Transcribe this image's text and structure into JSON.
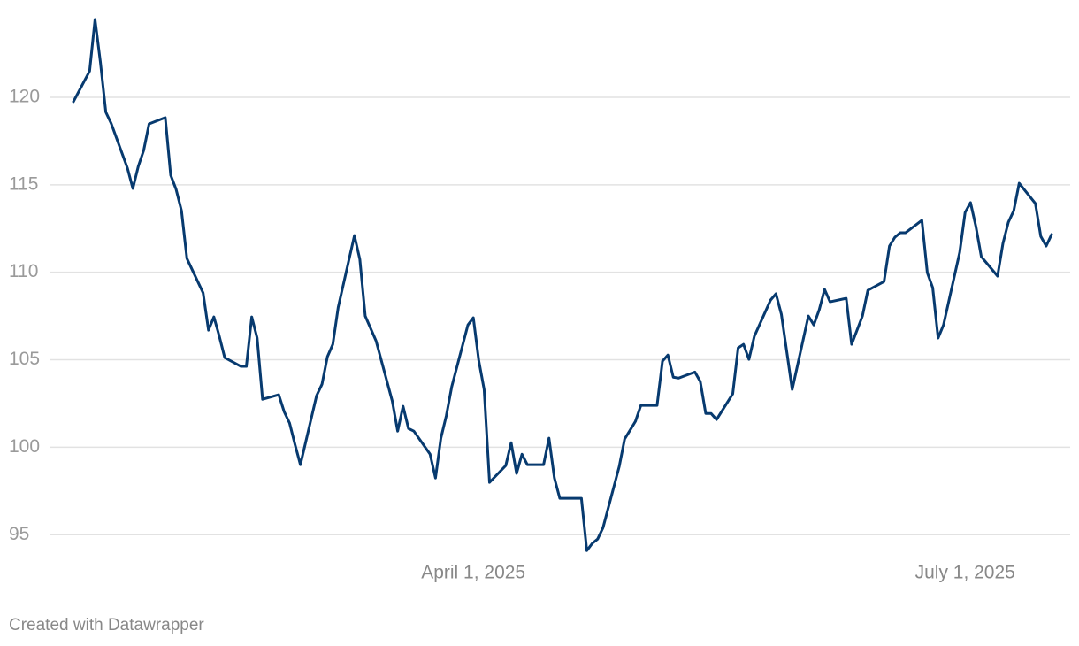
{
  "chart_data": {
    "type": "line",
    "credit": "Created with Datawrapper",
    "x": [
      "2025-01-17",
      "2025-01-20",
      "2025-01-21",
      "2025-01-22",
      "2025-01-23",
      "2025-01-24",
      "2025-01-27",
      "2025-01-28",
      "2025-01-29",
      "2025-01-30",
      "2025-01-31",
      "2025-02-03",
      "2025-02-04",
      "2025-02-05",
      "2025-02-06",
      "2025-02-07",
      "2025-02-10",
      "2025-02-11",
      "2025-02-12",
      "2025-02-13",
      "2025-02-14",
      "2025-02-17",
      "2025-02-18",
      "2025-02-19",
      "2025-02-20",
      "2025-02-21",
      "2025-02-24",
      "2025-02-25",
      "2025-02-26",
      "2025-02-27",
      "2025-02-28",
      "2025-03-03",
      "2025-03-04",
      "2025-03-05",
      "2025-03-06",
      "2025-03-07",
      "2025-03-10",
      "2025-03-11",
      "2025-03-12",
      "2025-03-14",
      "2025-03-17",
      "2025-03-18",
      "2025-03-19",
      "2025-03-20",
      "2025-03-21",
      "2025-03-24",
      "2025-03-25",
      "2025-03-26",
      "2025-03-27",
      "2025-03-28",
      "2025-03-31",
      "2025-04-01",
      "2025-04-02",
      "2025-04-03",
      "2025-04-04",
      "2025-04-07",
      "2025-04-08",
      "2025-04-09",
      "2025-04-10",
      "2025-04-11",
      "2025-04-14",
      "2025-04-15",
      "2025-04-16",
      "2025-04-17",
      "2025-04-21",
      "2025-04-22",
      "2025-04-23",
      "2025-04-24",
      "2025-04-25",
      "2025-04-28",
      "2025-04-29",
      "2025-04-30",
      "2025-05-01",
      "2025-05-02",
      "2025-05-05",
      "2025-05-06",
      "2025-05-07",
      "2025-05-08",
      "2025-05-09",
      "2025-05-12",
      "2025-05-13",
      "2025-05-14",
      "2025-05-15",
      "2025-05-16",
      "2025-05-19",
      "2025-05-20",
      "2025-05-21",
      "2025-05-22",
      "2025-05-23",
      "2025-05-26",
      "2025-05-27",
      "2025-05-28",
      "2025-05-30",
      "2025-06-02",
      "2025-06-03",
      "2025-06-04",
      "2025-06-05",
      "2025-06-06",
      "2025-06-09",
      "2025-06-10",
      "2025-06-12",
      "2025-06-13",
      "2025-06-16",
      "2025-06-17",
      "2025-06-18",
      "2025-06-19",
      "2025-06-20",
      "2025-06-23",
      "2025-06-24",
      "2025-06-25",
      "2025-06-26",
      "2025-06-27",
      "2025-06-30",
      "2025-07-01",
      "2025-07-02",
      "2025-07-03",
      "2025-07-04",
      "2025-07-07",
      "2025-07-08",
      "2025-07-09",
      "2025-07-10",
      "2025-07-11",
      "2025-07-14",
      "2025-07-15",
      "2025-07-16",
      "2025-07-17"
    ],
    "values": [
      119.75,
      121.5,
      124.45,
      122.0,
      119.15,
      118.5,
      115.95,
      114.79,
      116.05,
      116.96,
      118.48,
      118.84,
      115.55,
      114.74,
      113.52,
      110.79,
      108.82,
      106.69,
      107.45,
      106.34,
      105.12,
      104.62,
      104.62,
      107.45,
      106.24,
      102.74,
      103.0,
      102.03,
      101.38,
      100.16,
      99.0,
      102.95,
      103.6,
      105.17,
      105.88,
      108.0,
      112.1,
      110.74,
      107.5,
      106.08,
      102.64,
      100.92,
      102.34,
      101.07,
      100.92,
      99.6,
      98.24,
      100.52,
      101.8,
      103.45,
      106.99,
      107.4,
      104.97,
      103.3,
      97.99,
      98.95,
      100.26,
      98.5,
      99.6,
      99.0,
      99.0,
      100.52,
      98.24,
      97.08,
      97.08,
      94.09,
      94.5,
      94.75,
      95.4,
      98.9,
      100.47,
      100.97,
      101.48,
      102.39,
      102.39,
      104.92,
      105.27,
      104.0,
      103.95,
      104.3,
      103.75,
      101.93,
      101.93,
      101.58,
      103.05,
      105.68,
      105.88,
      105.02,
      106.34,
      108.41,
      108.77,
      107.6,
      103.3,
      107.5,
      106.99,
      107.85,
      109.02,
      108.31,
      108.51,
      105.88,
      107.5,
      108.97,
      109.47,
      111.5,
      112.0,
      112.26,
      112.26,
      112.97,
      109.98,
      109.12,
      106.24,
      106.99,
      111.14,
      113.42,
      113.98,
      112.61,
      110.89,
      109.78,
      111.65,
      112.86,
      113.52,
      115.09,
      113.93,
      112.05,
      111.5,
      112.16
    ],
    "color": "#073a6f",
    "xlim": [
      "2025-01-17",
      "2025-07-17"
    ],
    "xticks": [
      {
        "value": "2025-04-01",
        "label": "April 1, 2025"
      },
      {
        "value": "2025-07-01",
        "label": "July 1, 2025"
      }
    ],
    "ylim": [
      94,
      124.5
    ],
    "yticks": [
      95,
      100,
      105,
      110,
      115,
      120
    ],
    "grid": true
  }
}
